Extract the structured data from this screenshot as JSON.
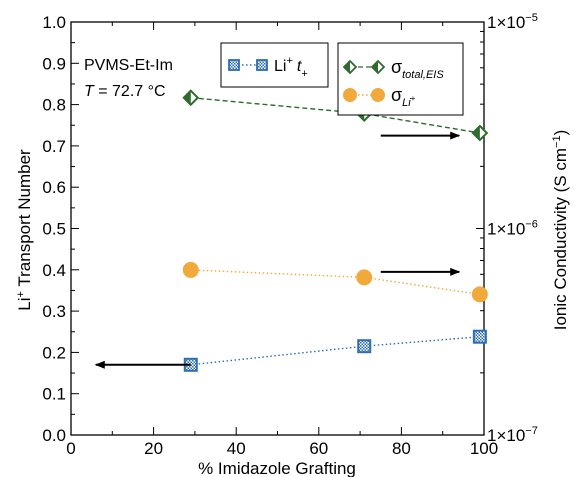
{
  "chart_data": {
    "type": "scatter",
    "x_axis": {
      "label": "% Imidazole Grafting",
      "range": [
        0,
        100
      ],
      "ticks": [
        0,
        20,
        40,
        60,
        80,
        100
      ]
    },
    "y_axis_left": {
      "label_prefix": "Li",
      "label_sup": "+",
      "label_suffix": " Transport Number",
      "range": [
        0,
        1
      ],
      "ticks": [
        "0.0",
        "0.1",
        "0.2",
        "0.3",
        "0.4",
        "0.5",
        "0.6",
        "0.7",
        "0.8",
        "0.9",
        "1.0"
      ]
    },
    "y_axis_right": {
      "label_prefix": "Ionic Conductivity (S cm",
      "label_sup": "−1",
      "label_suffix": ")",
      "scale": "log",
      "range": [
        1e-07,
        1e-05
      ],
      "ticks": [
        {
          "value": 1e-07,
          "mantissa": "1×10",
          "exponent": "−7"
        },
        {
          "value": 1e-06,
          "mantissa": "1×10",
          "exponent": "−6"
        },
        {
          "value": 1e-05,
          "mantissa": "1×10",
          "exponent": "−5"
        }
      ]
    },
    "annotations": {
      "sample": "PVMS-Et-Im",
      "temp_var": "T",
      "temp_value": " = 72.7 °C"
    },
    "series": [
      {
        "axis": "left",
        "legend_main": "Li",
        "legend_sup": "+",
        "legend_var": "t",
        "legend_sub": "+",
        "color": "#2e6db4",
        "line_style": "dotted",
        "marker": "square-hatched",
        "x": [
          29,
          71,
          99
        ],
        "y": [
          0.17,
          0.215,
          0.238
        ]
      },
      {
        "axis": "right",
        "legend_main": "σ",
        "legend_sub": "total,EIS",
        "color": "#2f6b2f",
        "line_style": "dashed",
        "marker": "diamond-half",
        "x": [
          29,
          71,
          99
        ],
        "y": [
          4.3e-06,
          3.6e-06,
          2.9e-06
        ]
      },
      {
        "axis": "right",
        "legend_main": "σ",
        "legend_sub": "Li",
        "legend_sub_sup": "+",
        "color": "#f2a93b",
        "line_style": "dotted",
        "marker": "circle",
        "x": [
          29,
          71,
          99
        ],
        "y": [
          6.3e-07,
          5.8e-07,
          4.8e-07
        ]
      }
    ],
    "axis_arrows": [
      {
        "x_from": 29,
        "x_to": 6,
        "y": 0.17,
        "points_to": "left"
      },
      {
        "x_from": 75,
        "x_to": 94,
        "y": 0.395,
        "points_to": "right"
      },
      {
        "x_from": 75,
        "x_to": 94,
        "y": 0.725,
        "points_to": "right"
      }
    ]
  }
}
